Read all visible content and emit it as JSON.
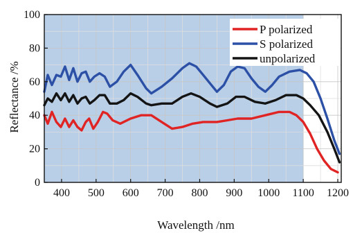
{
  "chart_data": {
    "type": "line",
    "xlabel": "Wavelength /nm",
    "ylabel": "Reflectance /%",
    "xlim": [
      350,
      1210
    ],
    "ylim": [
      0,
      100
    ],
    "xticks": [
      400,
      500,
      600,
      700,
      800,
      900,
      1000,
      1100,
      1200
    ],
    "yticks": [
      0,
      20,
      40,
      60,
      80,
      100
    ],
    "grid": true,
    "legend_position": "top-right",
    "shaded_region": {
      "x": [
        350,
        1100
      ],
      "color": "#b9cfe8"
    },
    "series": [
      {
        "name": "P polarized",
        "color": "#e02424",
        "points": [
          [
            350,
            40
          ],
          [
            360,
            35
          ],
          [
            372,
            42
          ],
          [
            385,
            36
          ],
          [
            398,
            33
          ],
          [
            410,
            38
          ],
          [
            422,
            33
          ],
          [
            434,
            37
          ],
          [
            446,
            33
          ],
          [
            458,
            31
          ],
          [
            470,
            36
          ],
          [
            480,
            38
          ],
          [
            492,
            32
          ],
          [
            505,
            36
          ],
          [
            520,
            42
          ],
          [
            532,
            41
          ],
          [
            548,
            37
          ],
          [
            570,
            35
          ],
          [
            600,
            38
          ],
          [
            630,
            40
          ],
          [
            660,
            40
          ],
          [
            690,
            36
          ],
          [
            720,
            32
          ],
          [
            750,
            33
          ],
          [
            780,
            35
          ],
          [
            810,
            36
          ],
          [
            850,
            36
          ],
          [
            880,
            37
          ],
          [
            910,
            38
          ],
          [
            950,
            38
          ],
          [
            990,
            40
          ],
          [
            1030,
            42
          ],
          [
            1060,
            42
          ],
          [
            1080,
            40
          ],
          [
            1100,
            36
          ],
          [
            1120,
            29
          ],
          [
            1140,
            20
          ],
          [
            1160,
            13
          ],
          [
            1180,
            8
          ],
          [
            1200,
            6
          ]
        ]
      },
      {
        "name": "S polarized",
        "color": "#2c50a6",
        "points": [
          [
            350,
            54
          ],
          [
            360,
            64
          ],
          [
            372,
            58
          ],
          [
            385,
            64
          ],
          [
            398,
            63
          ],
          [
            410,
            69
          ],
          [
            422,
            61
          ],
          [
            434,
            68
          ],
          [
            446,
            60
          ],
          [
            458,
            65
          ],
          [
            470,
            66
          ],
          [
            482,
            60
          ],
          [
            495,
            63
          ],
          [
            510,
            65
          ],
          [
            525,
            63
          ],
          [
            540,
            57
          ],
          [
            560,
            60
          ],
          [
            580,
            66
          ],
          [
            600,
            70
          ],
          [
            620,
            64
          ],
          [
            645,
            56
          ],
          [
            660,
            53
          ],
          [
            690,
            57
          ],
          [
            720,
            62
          ],
          [
            750,
            68
          ],
          [
            770,
            71
          ],
          [
            790,
            69
          ],
          [
            810,
            64
          ],
          [
            830,
            59
          ],
          [
            850,
            54
          ],
          [
            870,
            58
          ],
          [
            890,
            66
          ],
          [
            910,
            69
          ],
          [
            930,
            68
          ],
          [
            950,
            62
          ],
          [
            970,
            57
          ],
          [
            990,
            54
          ],
          [
            1010,
            58
          ],
          [
            1030,
            63
          ],
          [
            1060,
            66
          ],
          [
            1090,
            67
          ],
          [
            1110,
            65
          ],
          [
            1130,
            60
          ],
          [
            1150,
            50
          ],
          [
            1170,
            38
          ],
          [
            1190,
            25
          ],
          [
            1205,
            17
          ]
        ]
      },
      {
        "name": "unpolarized",
        "color": "#141414",
        "points": [
          [
            350,
            46
          ],
          [
            360,
            50
          ],
          [
            372,
            48
          ],
          [
            385,
            53
          ],
          [
            398,
            49
          ],
          [
            410,
            53
          ],
          [
            422,
            48
          ],
          [
            434,
            52
          ],
          [
            446,
            47
          ],
          [
            458,
            50
          ],
          [
            470,
            51
          ],
          [
            482,
            47
          ],
          [
            495,
            49
          ],
          [
            510,
            52
          ],
          [
            525,
            52
          ],
          [
            540,
            47
          ],
          [
            560,
            47
          ],
          [
            580,
            49
          ],
          [
            600,
            53
          ],
          [
            620,
            51
          ],
          [
            645,
            47
          ],
          [
            660,
            46
          ],
          [
            690,
            47
          ],
          [
            720,
            47
          ],
          [
            750,
            51
          ],
          [
            775,
            53
          ],
          [
            800,
            51
          ],
          [
            830,
            47
          ],
          [
            850,
            45
          ],
          [
            880,
            47
          ],
          [
            905,
            51
          ],
          [
            930,
            51
          ],
          [
            960,
            48
          ],
          [
            990,
            47
          ],
          [
            1020,
            49
          ],
          [
            1050,
            52
          ],
          [
            1080,
            52
          ],
          [
            1100,
            50
          ],
          [
            1120,
            46
          ],
          [
            1145,
            40
          ],
          [
            1170,
            30
          ],
          [
            1190,
            20
          ],
          [
            1205,
            12
          ]
        ]
      }
    ]
  }
}
